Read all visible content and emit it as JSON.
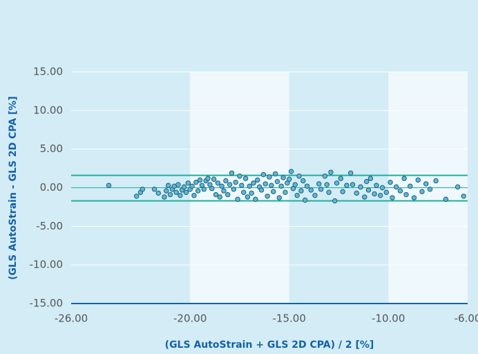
{
  "chart_data": {
    "type": "scatter",
    "xlabel": "(GLS AutoStrain + GLS 2D CPA) / 2 [%]",
    "ylabel": "(GLS AutoStrain - GLS 2D CPA [%]",
    "xlim": [
      -26,
      -6
    ],
    "ylim": [
      -15,
      15
    ],
    "xticks": [
      {
        "value": -26,
        "label": "-26.00"
      },
      {
        "value": -20,
        "label": "-20.00"
      },
      {
        "value": -15,
        "label": "-15.00"
      },
      {
        "value": -10,
        "label": "-10.00"
      },
      {
        "value": -6,
        "label": "-6.00"
      }
    ],
    "yticks": [
      {
        "value": 15,
        "label": "15.00"
      },
      {
        "value": 10,
        "label": "10.00"
      },
      {
        "value": 5,
        "label": "5.00"
      },
      {
        "value": 0,
        "label": "0.00"
      },
      {
        "value": -5,
        "label": "-5.00"
      },
      {
        "value": -10,
        "label": "-10.00"
      },
      {
        "value": -15,
        "label": "-15.00"
      }
    ],
    "hlines": [
      1.6,
      0,
      -1.7
    ],
    "line_color": "#1fae9c",
    "series": [
      {
        "color": "#5fb8d5",
        "x": [
          -24.1,
          -22.7,
          -22.5,
          -22.4,
          -21.8,
          -21.6,
          -21.3,
          -21.2,
          -21.1,
          -21.0,
          -20.9,
          -20.8,
          -20.7,
          -20.6,
          -20.5,
          -20.4,
          -20.3,
          -20.2,
          -20.1,
          -20.0,
          -19.9,
          -19.8,
          -19.7,
          -19.6,
          -19.5,
          -19.4,
          -19.3,
          -19.2,
          -19.1,
          -19.0,
          -18.9,
          -18.8,
          -18.7,
          -18.6,
          -18.5,
          -18.4,
          -18.3,
          -18.2,
          -18.1,
          -18.0,
          -17.9,
          -17.8,
          -17.7,
          -17.6,
          -17.5,
          -17.4,
          -17.3,
          -17.2,
          -17.1,
          -17.0,
          -16.9,
          -16.8,
          -16.7,
          -16.6,
          -16.5,
          -16.4,
          -16.3,
          -16.2,
          -16.1,
          -16.0,
          -15.9,
          -15.8,
          -15.7,
          -15.6,
          -15.5,
          -15.4,
          -15.3,
          -15.2,
          -15.1,
          -15.0,
          -14.9,
          -14.8,
          -14.7,
          -14.6,
          -14.5,
          -14.4,
          -14.3,
          -14.2,
          -14.1,
          -13.9,
          -13.7,
          -13.5,
          -13.4,
          -13.2,
          -13.1,
          -13.0,
          -12.9,
          -12.7,
          -12.6,
          -12.4,
          -12.3,
          -12.1,
          -11.9,
          -11.8,
          -11.6,
          -11.4,
          -11.2,
          -11.1,
          -11.0,
          -10.9,
          -10.7,
          -10.6,
          -10.4,
          -10.3,
          -10.1,
          -9.9,
          -9.8,
          -9.6,
          -9.4,
          -9.2,
          -9.1,
          -8.9,
          -8.7,
          -8.5,
          -8.3,
          -8.1,
          -7.9,
          -7.6,
          -7.1,
          -6.5,
          -6.2
        ],
        "values": [
          0.3,
          -1.1,
          -0.6,
          -0.2,
          -0.2,
          -0.7,
          -1.2,
          -0.4,
          0.3,
          -0.9,
          -0.2,
          0.2,
          -0.6,
          0.4,
          -1.0,
          -0.3,
          0.1,
          -0.6,
          0.6,
          -0.2,
          0.2,
          -1.0,
          0.7,
          -0.4,
          1.0,
          0.3,
          -0.2,
          0.9,
          1.2,
          0.4,
          -0.1,
          1.1,
          -0.9,
          0.6,
          -1.2,
          0.2,
          -0.4,
          0.9,
          -0.9,
          0.4,
          1.9,
          -0.2,
          0.7,
          -1.5,
          1.5,
          0.3,
          -0.6,
          1.2,
          -1.2,
          0.2,
          -0.7,
          0.6,
          -1.5,
          1.0,
          0.1,
          -0.3,
          1.7,
          0.5,
          -1.1,
          1.4,
          0.3,
          -0.5,
          1.8,
          0.8,
          -1.3,
          0.2,
          1.3,
          -0.6,
          0.6,
          1.1,
          2.1,
          -0.1,
          0.4,
          -1.0,
          1.5,
          -0.4,
          0.9,
          -1.6,
          0.2,
          -0.3,
          -1.0,
          0.5,
          -0.2,
          1.5,
          0.4,
          -0.6,
          2.0,
          -1.7,
          0.6,
          1.2,
          -0.5,
          0.3,
          1.9,
          0.4,
          -0.7,
          0.1,
          -1.2,
          0.8,
          -0.3,
          1.2,
          -0.8,
          0.3,
          -1.0,
          0.0,
          -0.6,
          0.7,
          -1.3,
          0.1,
          -0.4,
          1.2,
          -0.9,
          0.2,
          -1.3,
          1.0,
          -0.5,
          0.5,
          -0.2,
          0.9,
          -1.5,
          0.1,
          -1.1
        ]
      }
    ]
  }
}
